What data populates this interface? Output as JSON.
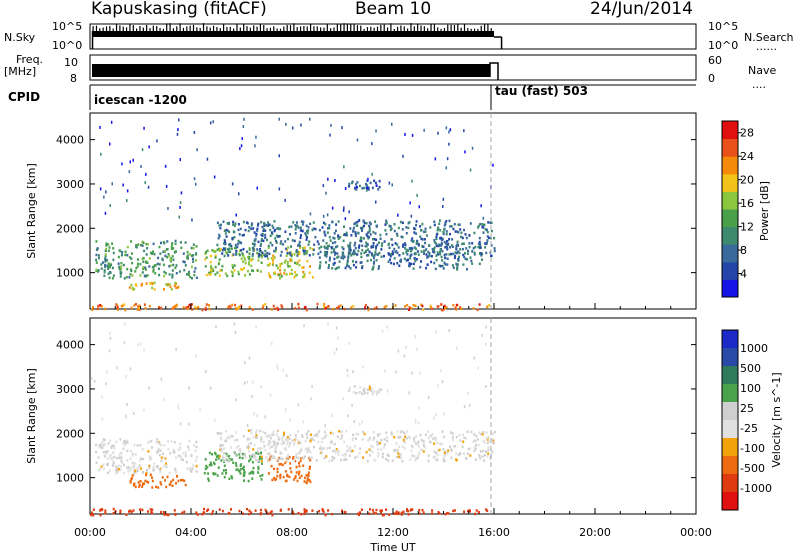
{
  "header": {
    "title": "Kapuskasing (fitACF)",
    "beam": "Beam 10",
    "date": "24/Jun/2014"
  },
  "strips": {
    "nsky_label": "N.Sky",
    "nsky_ticks": [
      "10^5",
      "10^0"
    ],
    "nsearch_label": "N.Search",
    "nsearch_ticks": [
      "10^5",
      "10^0"
    ],
    "freq_label": "Freq.",
    "freq_unit": "[MHz]",
    "freq_ticks": [
      "10",
      "8"
    ],
    "nave_label": "Nave",
    "nave_ticks": [
      "60",
      "0"
    ],
    "cpid_label": "CPID",
    "cpid_segments": [
      {
        "name": "icescan -1200",
        "start_hour": 0,
        "end_hour": 16
      },
      {
        "name": "tau (fast) 503",
        "start_hour": 16,
        "end_hour": 24
      }
    ]
  },
  "panels": {
    "ylabel": "Slant Range [km]",
    "yticks": [
      "1000",
      "2000",
      "3000",
      "4000"
    ],
    "xticks": [
      "00:00",
      "04:00",
      "08:00",
      "12:00",
      "16:00",
      "20:00",
      "00:00"
    ],
    "xlabel": "Time UT",
    "power_label": "Power [dB]",
    "power_ticks": [
      "4",
      "8",
      "12",
      "16",
      "20",
      "24",
      "28"
    ],
    "velocity_label": "Velocity [m s^-1]",
    "velocity_ticks": [
      "1000",
      "500",
      "100",
      "25",
      "-25",
      "-100",
      "-500",
      "-1000"
    ]
  },
  "colors": {
    "power_scale": [
      "#1414e6",
      "#2346a8",
      "#3a6a9c",
      "#3d8a6e",
      "#4aa04a",
      "#8cc63f",
      "#f2c11a",
      "#f58a0a",
      "#e8521a",
      "#e01010"
    ],
    "velocity_scale": [
      "#1c2bc8",
      "#2a4aa8",
      "#2f7a5a",
      "#4aa24a",
      "#cfcfcf",
      "#e0e0e0",
      "#f2a20a",
      "#ee6a10",
      "#e03a10",
      "#e01010"
    ],
    "echo_blue": "#2346a8",
    "echo_green": "#4aa24a",
    "echo_gray": "#cfcfcf",
    "echo_orange": "#f58a0a",
    "echo_red": "#e01010"
  },
  "chart_data": [
    {
      "type": "heatmap",
      "title": "Power [dB]",
      "xlabel": "Time UT",
      "ylabel": "Slant Range [km]",
      "xlim": [
        0,
        24
      ],
      "ylim": [
        180,
        4600
      ],
      "colorbar_range": [
        0,
        30
      ],
      "data_coverage_hours": [
        0,
        16
      ],
      "regions": [
        {
          "t_start": 0.2,
          "t_end": 4.2,
          "r_min": 900,
          "r_max": 1750,
          "value": 12
        },
        {
          "t_start": 1.5,
          "t_end": 3.5,
          "r_min": 650,
          "r_max": 800,
          "value": 20
        },
        {
          "t_start": 4.5,
          "t_end": 6.8,
          "r_min": 950,
          "r_max": 1600,
          "value": 16
        },
        {
          "t_start": 7.0,
          "t_end": 8.8,
          "r_min": 900,
          "r_max": 1600,
          "value": 18
        },
        {
          "t_start": 5.0,
          "t_end": 16.0,
          "r_min": 1400,
          "r_max": 2200,
          "value": 8
        },
        {
          "t_start": 9.0,
          "t_end": 15.5,
          "r_min": 1100,
          "r_max": 1700,
          "value": 8
        },
        {
          "t_start": 10.2,
          "t_end": 11.5,
          "r_min": 2900,
          "r_max": 3100,
          "value": 6
        },
        {
          "t_start": 0.0,
          "t_end": 16.0,
          "r_min": 180,
          "r_max": 320,
          "value": 24
        }
      ]
    },
    {
      "type": "heatmap",
      "title": "Velocity [m s^-1]",
      "xlabel": "Time UT",
      "ylabel": "Slant Range [km]",
      "xlim": [
        0,
        24
      ],
      "ylim": [
        180,
        4600
      ],
      "colorbar_levels": [
        1000,
        500,
        100,
        25,
        -25,
        -100,
        -500,
        -1000
      ],
      "data_coverage_hours": [
        0,
        16
      ],
      "regions": [
        {
          "t_start": 0.2,
          "t_end": 4.2,
          "r_min": 1100,
          "r_max": 1900,
          "value": 0
        },
        {
          "t_start": 1.5,
          "t_end": 3.8,
          "r_min": 800,
          "r_max": 1100,
          "value": -300
        },
        {
          "t_start": 4.5,
          "t_end": 6.8,
          "r_min": 950,
          "r_max": 1600,
          "value": 100
        },
        {
          "t_start": 7.0,
          "t_end": 8.8,
          "r_min": 900,
          "r_max": 1500,
          "value": -200
        },
        {
          "t_start": 5.0,
          "t_end": 16.0,
          "r_min": 1400,
          "r_max": 2100,
          "value": 0
        },
        {
          "t_start": 10.2,
          "t_end": 11.5,
          "r_min": 2900,
          "r_max": 3100,
          "value": 0
        },
        {
          "t_start": 0.0,
          "t_end": 16.0,
          "r_min": 180,
          "r_max": 320,
          "value": -500
        }
      ]
    }
  ]
}
